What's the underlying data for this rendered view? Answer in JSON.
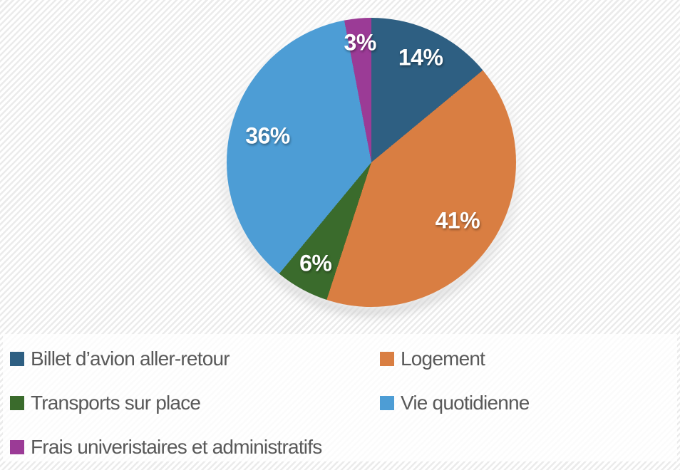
{
  "chart_data": {
    "type": "pie",
    "title": "",
    "slices": [
      {
        "label": "Billet d’avion aller-retour",
        "value": 14,
        "pct_label": "14%",
        "color": "#2E5F82"
      },
      {
        "label": "Logement",
        "value": 41,
        "pct_label": "41%",
        "color": "#D97E42"
      },
      {
        "label": "Transports sur place",
        "value": 6,
        "pct_label": "6%",
        "color": "#3A6B2C"
      },
      {
        "label": "Vie quotidienne",
        "value": 36,
        "pct_label": "36%",
        "color": "#4D9DD5"
      },
      {
        "label": "Frais univeristaires et administratifs",
        "value": 3,
        "pct_label": "3%",
        "color": "#9B3B96"
      }
    ],
    "layout": {
      "start_angle_deg": 0,
      "direction": "clockwise",
      "label_radius_factors": [
        0.8,
        0.72,
        0.8,
        0.74,
        0.83
      ],
      "legend_position": "bottom",
      "legend_columns": 2,
      "data_labels": "percent-inside-white-bold"
    },
    "colors": {
      "label_text": "#FFFFFF",
      "legend_text": "#595959",
      "background_stripe": "#EBEBEB",
      "background_base": "#FFFFFF"
    }
  }
}
